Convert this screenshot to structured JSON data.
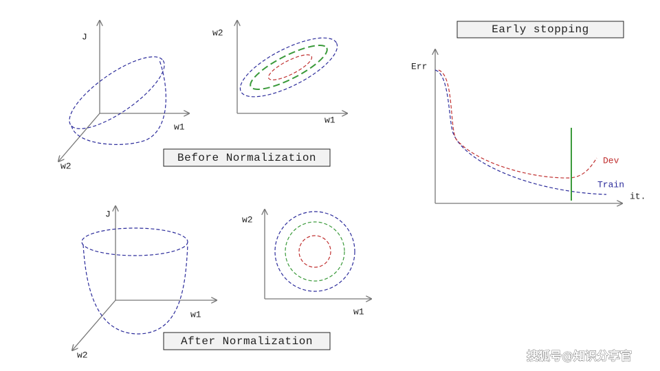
{
  "before_normalization": {
    "label": "Before Normalization",
    "surface_3d": {
      "z_axis": "J",
      "x_axis": "w1",
      "y_axis": "w2"
    },
    "contour": {
      "x_axis": "w1",
      "y_axis": "w2"
    }
  },
  "after_normalization": {
    "label": "After Normalization",
    "surface_3d": {
      "z_axis": "J",
      "x_axis": "w1",
      "y_axis": "w2"
    },
    "contour": {
      "x_axis": "w1",
      "y_axis": "w2"
    }
  },
  "early_stopping": {
    "title": "Early stopping",
    "y_axis": "Err",
    "x_axis": "it.",
    "curves": [
      "Dev",
      "Train"
    ]
  },
  "watermark": "搜狐号@知识分享官"
}
